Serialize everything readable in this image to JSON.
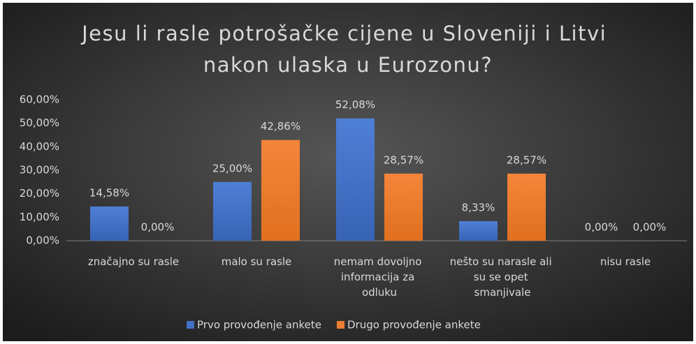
{
  "chart_data": {
    "type": "bar",
    "title": "Jesu li rasle potrošačke cijene u Sloveniji i Litvi nakon ulaska u Eurozonu?",
    "categories": [
      "značajno su rasle",
      "malo su rasle",
      "nemam dovoljno informacija za odluku",
      "nešto su narasle ali su se opet smanjivale",
      "nisu rasle"
    ],
    "series": [
      {
        "name": "Prvo provođenje ankete",
        "color": "#4472c4",
        "values": [
          14.58,
          25.0,
          52.08,
          8.33,
          0.0
        ],
        "value_labels": [
          "14,58%",
          "25,00%",
          "52,08%",
          "8,33%",
          "0,00%"
        ]
      },
      {
        "name": "Drugo provođenje ankete",
        "color": "#ed7d31",
        "values": [
          0.0,
          42.86,
          28.57,
          28.57,
          0.0
        ],
        "value_labels": [
          "0,00%",
          "42,86%",
          "28,57%",
          "28,57%",
          "0,00%"
        ]
      }
    ],
    "ylim": [
      0,
      60
    ],
    "yticks": [
      {
        "value": 0,
        "label": "0,00%"
      },
      {
        "value": 10,
        "label": "10,00%"
      },
      {
        "value": 20,
        "label": "20,00%"
      },
      {
        "value": 30,
        "label": "30,00%"
      },
      {
        "value": 40,
        "label": "40,00%"
      },
      {
        "value": 50,
        "label": "50,00%"
      },
      {
        "value": 60,
        "label": "60,00%"
      }
    ],
    "grid": false,
    "legend": "bottom"
  }
}
